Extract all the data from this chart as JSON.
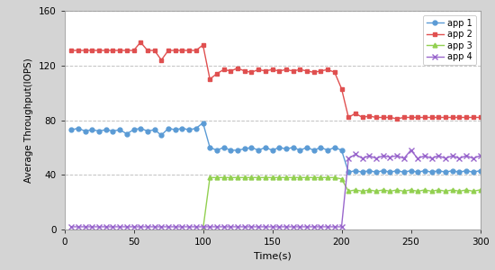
{
  "title": "",
  "xlabel": "Time(s)",
  "ylabel": "Average Throughput(IOPS)",
  "xlim": [
    0,
    300
  ],
  "ylim": [
    0,
    160
  ],
  "yticks": [
    0,
    40,
    80,
    120,
    160
  ],
  "xticks": [
    0,
    50,
    100,
    150,
    200,
    250,
    300
  ],
  "background_color": "#d4d4d4",
  "plot_bg": "#ffffff",
  "grid_color": "#bbbbbb",
  "series": {
    "app1": {
      "color": "#5b9bd5",
      "marker": "o",
      "markersize": 3.5,
      "linewidth": 1.0,
      "label": "app 1",
      "linestyle": "-",
      "data": {
        "x": [
          5,
          10,
          15,
          20,
          25,
          30,
          35,
          40,
          45,
          50,
          55,
          60,
          65,
          70,
          75,
          80,
          85,
          90,
          95,
          100,
          105,
          110,
          115,
          120,
          125,
          130,
          135,
          140,
          145,
          150,
          155,
          160,
          165,
          170,
          175,
          180,
          185,
          190,
          195,
          200,
          205,
          210,
          215,
          220,
          225,
          230,
          235,
          240,
          245,
          250,
          255,
          260,
          265,
          270,
          275,
          280,
          285,
          290,
          295,
          300
        ],
        "y": [
          73,
          74,
          72,
          73,
          72,
          73,
          72,
          73,
          70,
          73,
          74,
          72,
          73,
          69,
          74,
          73,
          74,
          73,
          74,
          78,
          60,
          58,
          60,
          58,
          58,
          59,
          60,
          58,
          60,
          58,
          60,
          59,
          60,
          58,
          60,
          58,
          60,
          58,
          60,
          58,
          42,
          43,
          42,
          43,
          42,
          43,
          42,
          43,
          42,
          43,
          42,
          43,
          42,
          43,
          42,
          43,
          42,
          43,
          42,
          43
        ]
      }
    },
    "app2": {
      "color": "#e05050",
      "marker": "s",
      "markersize": 3.5,
      "linewidth": 1.0,
      "label": "app 2",
      "linestyle": "-",
      "data": {
        "x": [
          5,
          10,
          15,
          20,
          25,
          30,
          35,
          40,
          45,
          50,
          55,
          60,
          65,
          70,
          75,
          80,
          85,
          90,
          95,
          100,
          105,
          110,
          115,
          120,
          125,
          130,
          135,
          140,
          145,
          150,
          155,
          160,
          165,
          170,
          175,
          180,
          185,
          190,
          195,
          200,
          205,
          210,
          215,
          220,
          225,
          230,
          235,
          240,
          245,
          250,
          255,
          260,
          265,
          270,
          275,
          280,
          285,
          290,
          295,
          300
        ],
        "y": [
          131,
          131,
          131,
          131,
          131,
          131,
          131,
          131,
          131,
          131,
          137,
          131,
          131,
          124,
          131,
          131,
          131,
          131,
          131,
          135,
          110,
          114,
          117,
          116,
          118,
          116,
          115,
          117,
          116,
          117,
          116,
          117,
          116,
          117,
          116,
          115,
          116,
          117,
          115,
          103,
          82,
          85,
          82,
          83,
          82,
          82,
          82,
          81,
          82,
          82,
          82,
          82,
          82,
          82,
          82,
          82,
          82,
          82,
          82,
          82
        ]
      }
    },
    "app3": {
      "color": "#92d050",
      "marker": "^",
      "markersize": 3.5,
      "linewidth": 1.0,
      "label": "app 3",
      "linestyle": "-",
      "data": {
        "x": [
          100,
          105,
          110,
          115,
          120,
          125,
          130,
          135,
          140,
          145,
          150,
          155,
          160,
          165,
          170,
          175,
          180,
          185,
          190,
          195,
          200,
          205,
          210,
          215,
          220,
          225,
          230,
          235,
          240,
          245,
          250,
          255,
          260,
          265,
          270,
          275,
          280,
          285,
          290,
          295,
          300
        ],
        "y": [
          0,
          38,
          38,
          38,
          38,
          38,
          38,
          38,
          38,
          38,
          38,
          38,
          38,
          38,
          38,
          38,
          38,
          38,
          38,
          38,
          37,
          28,
          29,
          28,
          29,
          28,
          29,
          28,
          29,
          28,
          29,
          28,
          29,
          28,
          29,
          28,
          29,
          28,
          29,
          28,
          29
        ]
      }
    },
    "app4": {
      "color": "#9966cc",
      "marker": "x",
      "markersize": 4,
      "linewidth": 1.0,
      "label": "app 4",
      "linestyle": "-",
      "data": {
        "x": [
          5,
          10,
          15,
          20,
          25,
          30,
          35,
          40,
          45,
          50,
          55,
          60,
          65,
          70,
          75,
          80,
          85,
          90,
          95,
          100,
          105,
          110,
          115,
          120,
          125,
          130,
          135,
          140,
          145,
          150,
          155,
          160,
          165,
          170,
          175,
          180,
          185,
          190,
          195,
          200,
          205,
          210,
          215,
          220,
          225,
          230,
          235,
          240,
          245,
          250,
          255,
          260,
          265,
          270,
          275,
          280,
          285,
          290,
          295,
          300
        ],
        "y": [
          2,
          2,
          2,
          2,
          2,
          2,
          2,
          2,
          2,
          2,
          2,
          2,
          2,
          2,
          2,
          2,
          2,
          2,
          2,
          2,
          2,
          2,
          2,
          2,
          2,
          2,
          2,
          2,
          2,
          2,
          2,
          2,
          2,
          2,
          2,
          2,
          2,
          2,
          2,
          2,
          52,
          55,
          52,
          54,
          52,
          54,
          53,
          54,
          52,
          58,
          52,
          54,
          52,
          54,
          52,
          54,
          52,
          54,
          52,
          54
        ]
      }
    }
  }
}
